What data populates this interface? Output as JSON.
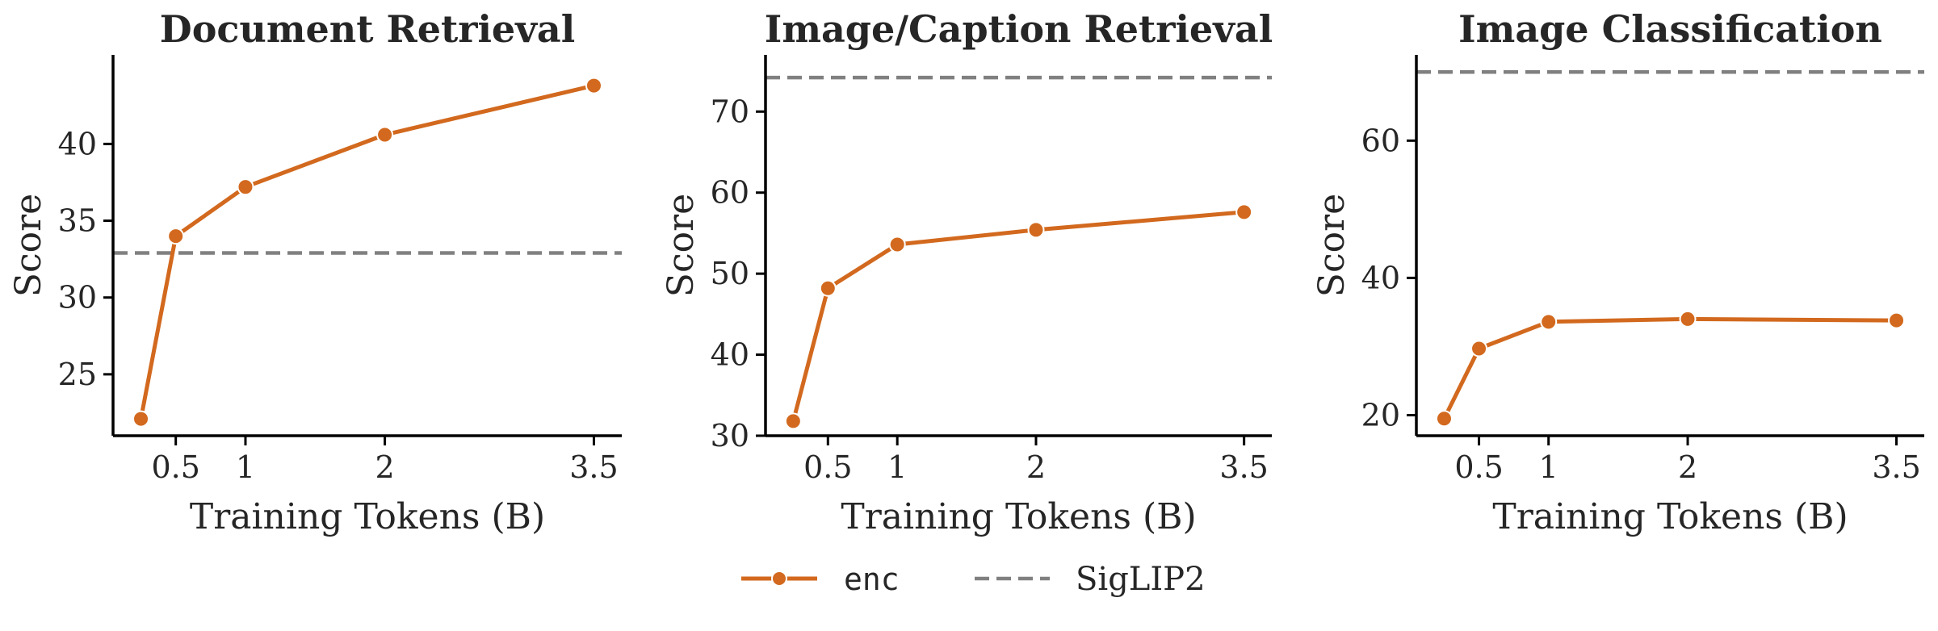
{
  "colors": {
    "enc": "#D2691E",
    "baseline": "#808080",
    "axis": "#000000",
    "text": "#262626"
  },
  "legend": {
    "series_label": "enc",
    "baseline_label": "SigLIP2",
    "placement": "bottom-center"
  },
  "chart_data": [
    {
      "type": "line",
      "title": "Document Retrieval",
      "xlabel": "Training Tokens (B)",
      "ylabel": "Score",
      "xticks": [
        0.5,
        1,
        2,
        3.5
      ],
      "xtick_labels": [
        "0.5",
        "1",
        "2",
        "3.5"
      ],
      "yticks": [
        25,
        30,
        35,
        40
      ],
      "xlim": [
        0.05,
        3.7
      ],
      "ylim": [
        21,
        45.8
      ],
      "series": [
        {
          "name": "enc",
          "x": [
            0.25,
            0.5,
            1,
            2,
            3.5
          ],
          "y": [
            22.1,
            34.0,
            37.2,
            40.6,
            43.8
          ]
        }
      ],
      "baseline": {
        "name": "SigLIP2",
        "y": 32.9
      }
    },
    {
      "type": "line",
      "title": "Image/Caption Retrieval",
      "xlabel": "Training Tokens (B)",
      "ylabel": "Score",
      "xticks": [
        0.5,
        1,
        2,
        3.5
      ],
      "xtick_labels": [
        "0.5",
        "1",
        "2",
        "3.5"
      ],
      "yticks": [
        30,
        40,
        50,
        60,
        70
      ],
      "xlim": [
        0.05,
        3.7
      ],
      "ylim": [
        30,
        77
      ],
      "series": [
        {
          "name": "enc",
          "x": [
            0.25,
            0.5,
            1,
            2,
            3.5
          ],
          "y": [
            31.8,
            48.2,
            53.6,
            55.4,
            57.6
          ]
        }
      ],
      "baseline": {
        "name": "SigLIP2",
        "y": 74.2
      }
    },
    {
      "type": "line",
      "title": "Image Classification",
      "xlabel": "Training Tokens (B)",
      "ylabel": "Score",
      "xticks": [
        0.5,
        1,
        2,
        3.5
      ],
      "xtick_labels": [
        "0.5",
        "1",
        "2",
        "3.5"
      ],
      "yticks": [
        20,
        40,
        60
      ],
      "xlim": [
        0.05,
        3.7
      ],
      "ylim": [
        17,
        72.5
      ],
      "series": [
        {
          "name": "enc",
          "x": [
            0.25,
            0.5,
            1,
            2,
            3.5
          ],
          "y": [
            19.5,
            29.7,
            33.6,
            34.0,
            33.8
          ]
        }
      ],
      "baseline": {
        "name": "SigLIP2",
        "y": 70.0
      }
    }
  ]
}
